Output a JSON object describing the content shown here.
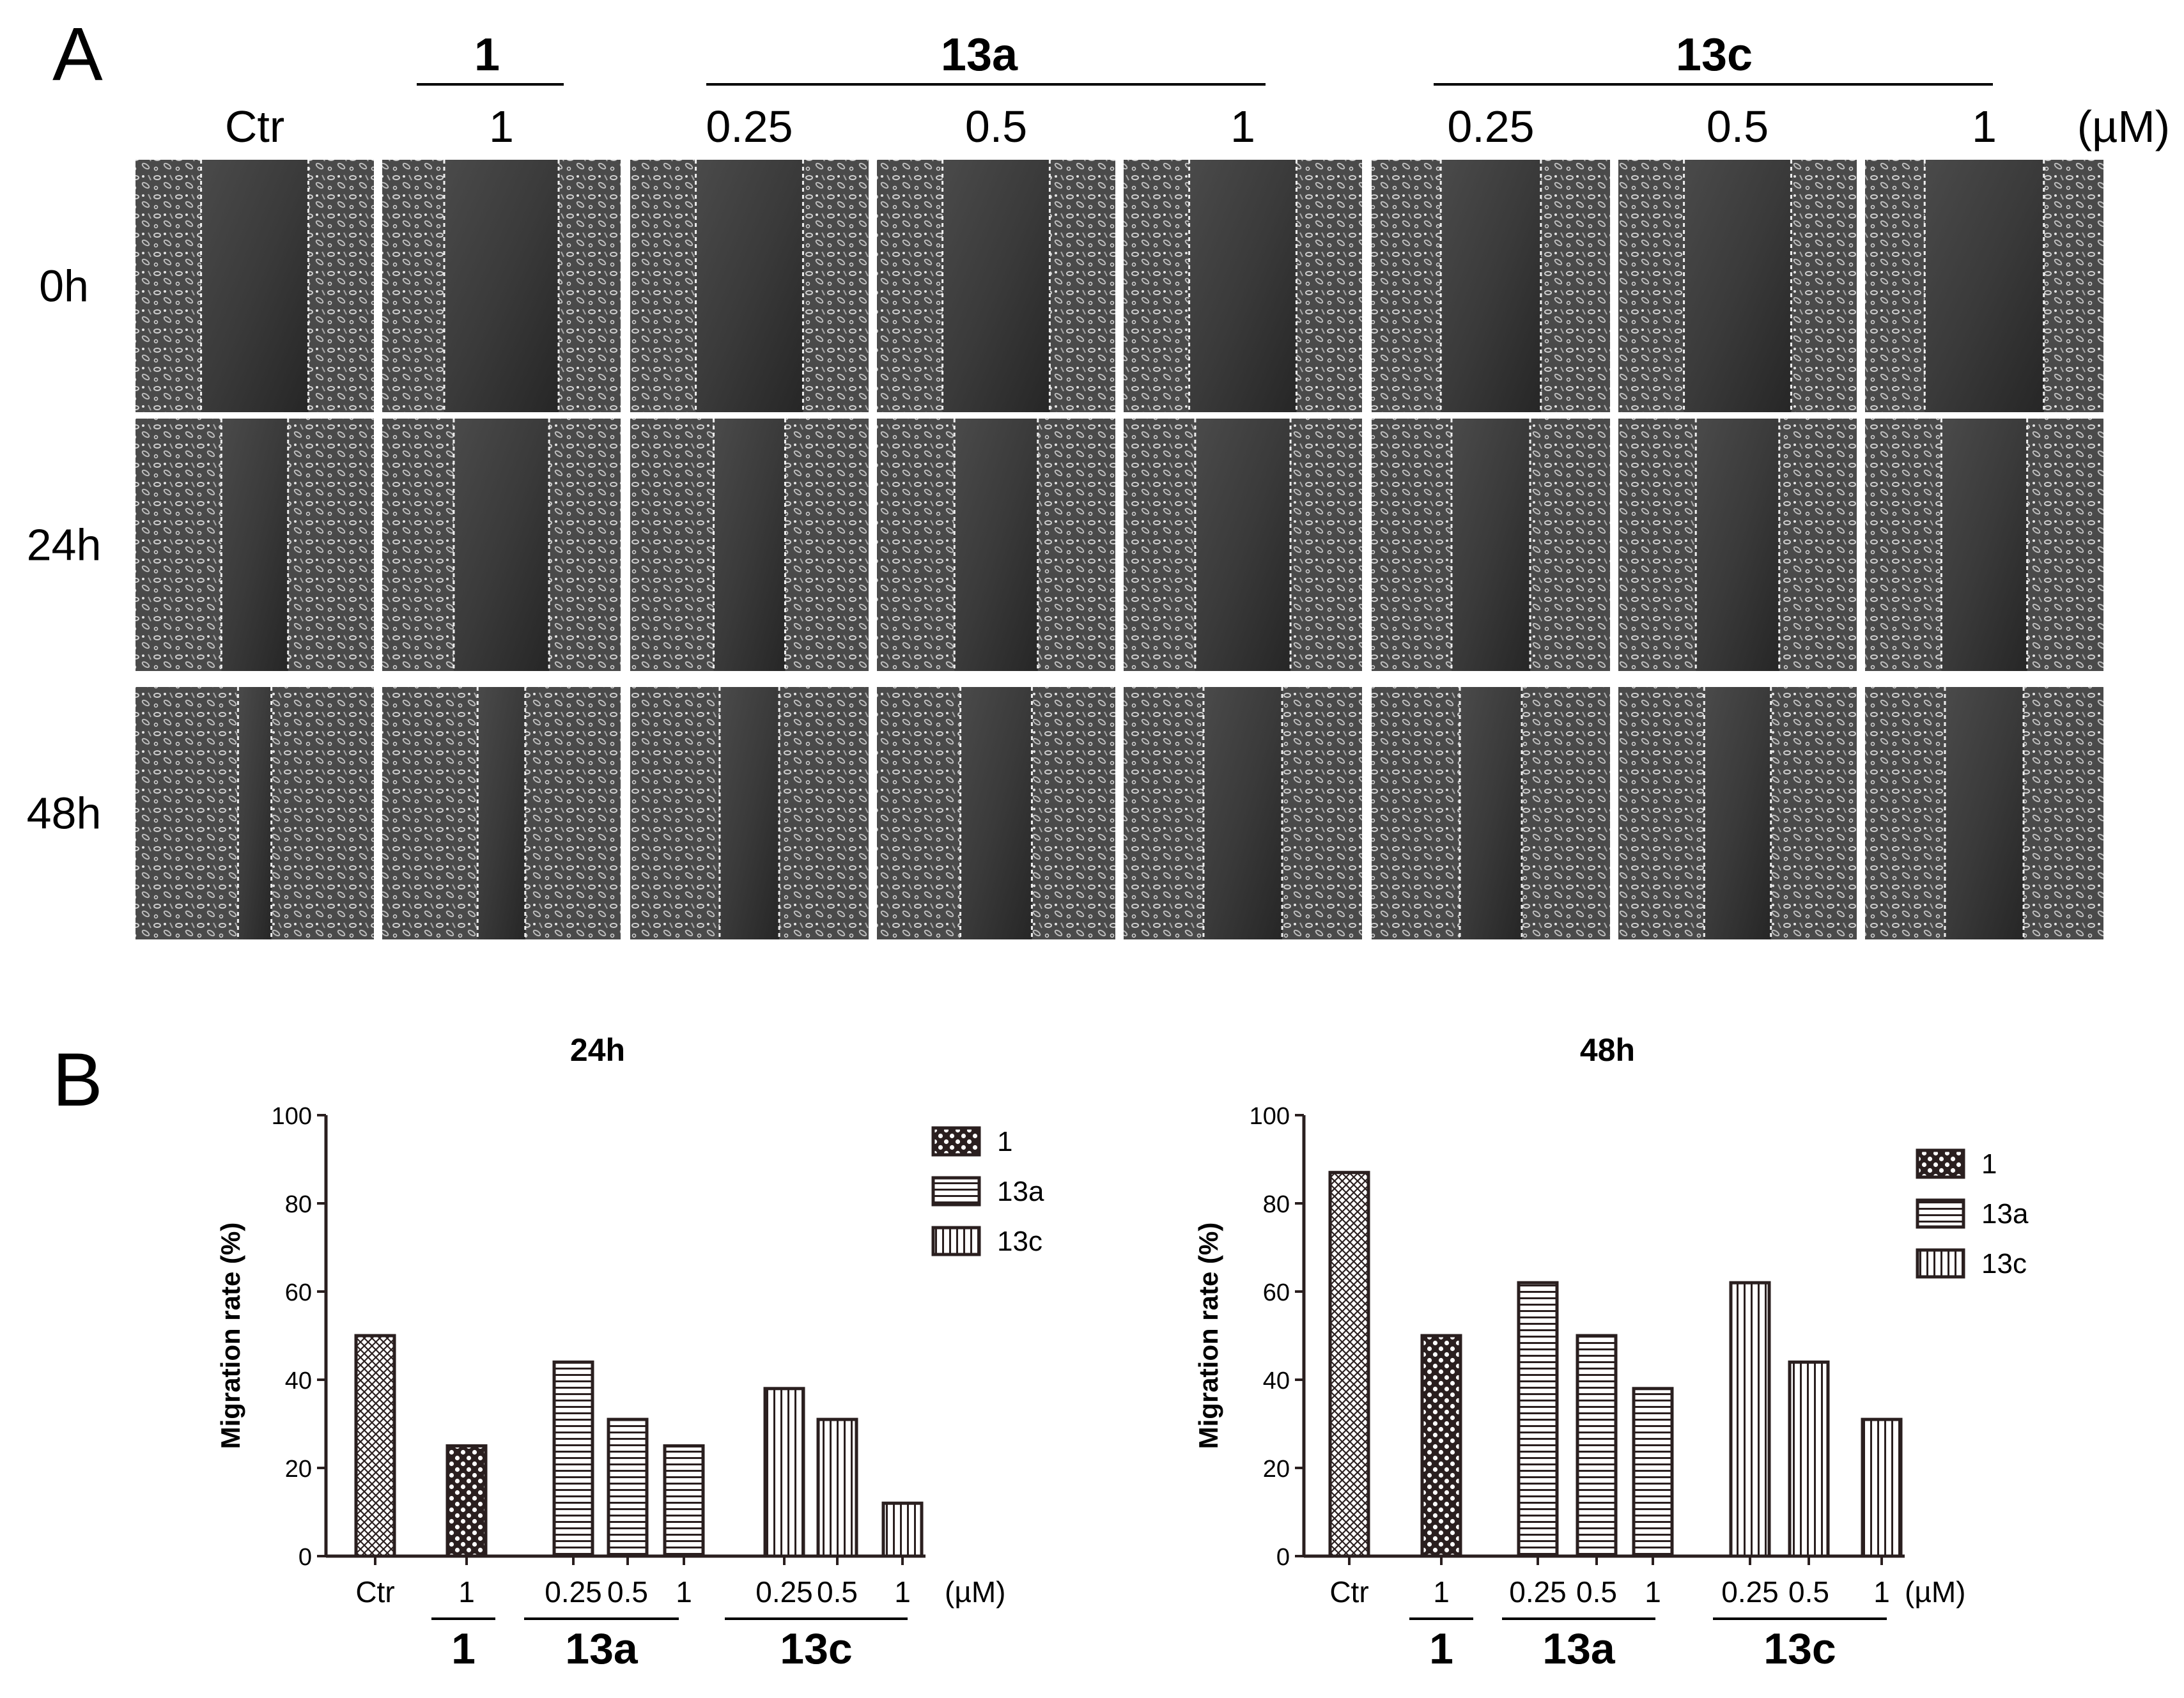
{
  "panel_a": {
    "letter": "A",
    "group_labels": [
      "1",
      "13a",
      "13c"
    ],
    "column_labels": [
      "Ctr",
      "1",
      "0.25",
      "0.5",
      "1",
      "0.25",
      "0.5",
      "1"
    ],
    "unit": "(µM)",
    "row_labels": [
      "0h",
      "24h",
      "48h"
    ]
  },
  "panel_b": {
    "letter": "B"
  },
  "chart_data": [
    {
      "type": "bar",
      "title": "24h",
      "ylabel": "Migration rate (%)",
      "xlabel": "",
      "ylim": [
        0,
        100
      ],
      "yticks": [
        0,
        20,
        40,
        60,
        80,
        100
      ],
      "categories": [
        "Ctr",
        "1",
        "0.25",
        "0.5",
        "1",
        "0.25",
        "0.5",
        "1"
      ],
      "values": [
        50,
        25,
        44,
        31,
        25,
        38,
        31,
        12
      ],
      "patterns": [
        "fine",
        "checker",
        "hstripe",
        "hstripe",
        "hstripe",
        "vstripe",
        "vstripe",
        "vstripe"
      ],
      "x_unit": "(µM)",
      "group_labels": [
        "1",
        "13a",
        "13c"
      ],
      "legend": [
        {
          "label": "1",
          "pattern": "checker"
        },
        {
          "label": "13a",
          "pattern": "hstripe"
        },
        {
          "label": "13c",
          "pattern": "vstripe"
        }
      ],
      "legend_position": "top-right",
      "grid": false
    },
    {
      "type": "bar",
      "title": "48h",
      "ylabel": "Migration rate (%)",
      "xlabel": "",
      "ylim": [
        0,
        100
      ],
      "yticks": [
        0,
        20,
        40,
        60,
        80,
        100
      ],
      "categories": [
        "Ctr",
        "1",
        "0.25",
        "0.5",
        "1",
        "0.25",
        "0.5",
        "1"
      ],
      "values": [
        87,
        50,
        62,
        50,
        38,
        62,
        44,
        31
      ],
      "patterns": [
        "fine",
        "checker",
        "hstripe",
        "hstripe",
        "hstripe",
        "vstripe",
        "vstripe",
        "vstripe"
      ],
      "x_unit": "(µM)",
      "group_labels": [
        "1",
        "13a",
        "13c"
      ],
      "legend": [
        {
          "label": "1",
          "pattern": "checker"
        },
        {
          "label": "13a",
          "pattern": "hstripe"
        },
        {
          "label": "13c",
          "pattern": "vstripe"
        }
      ],
      "legend_position": "top-right",
      "grid": false
    }
  ]
}
